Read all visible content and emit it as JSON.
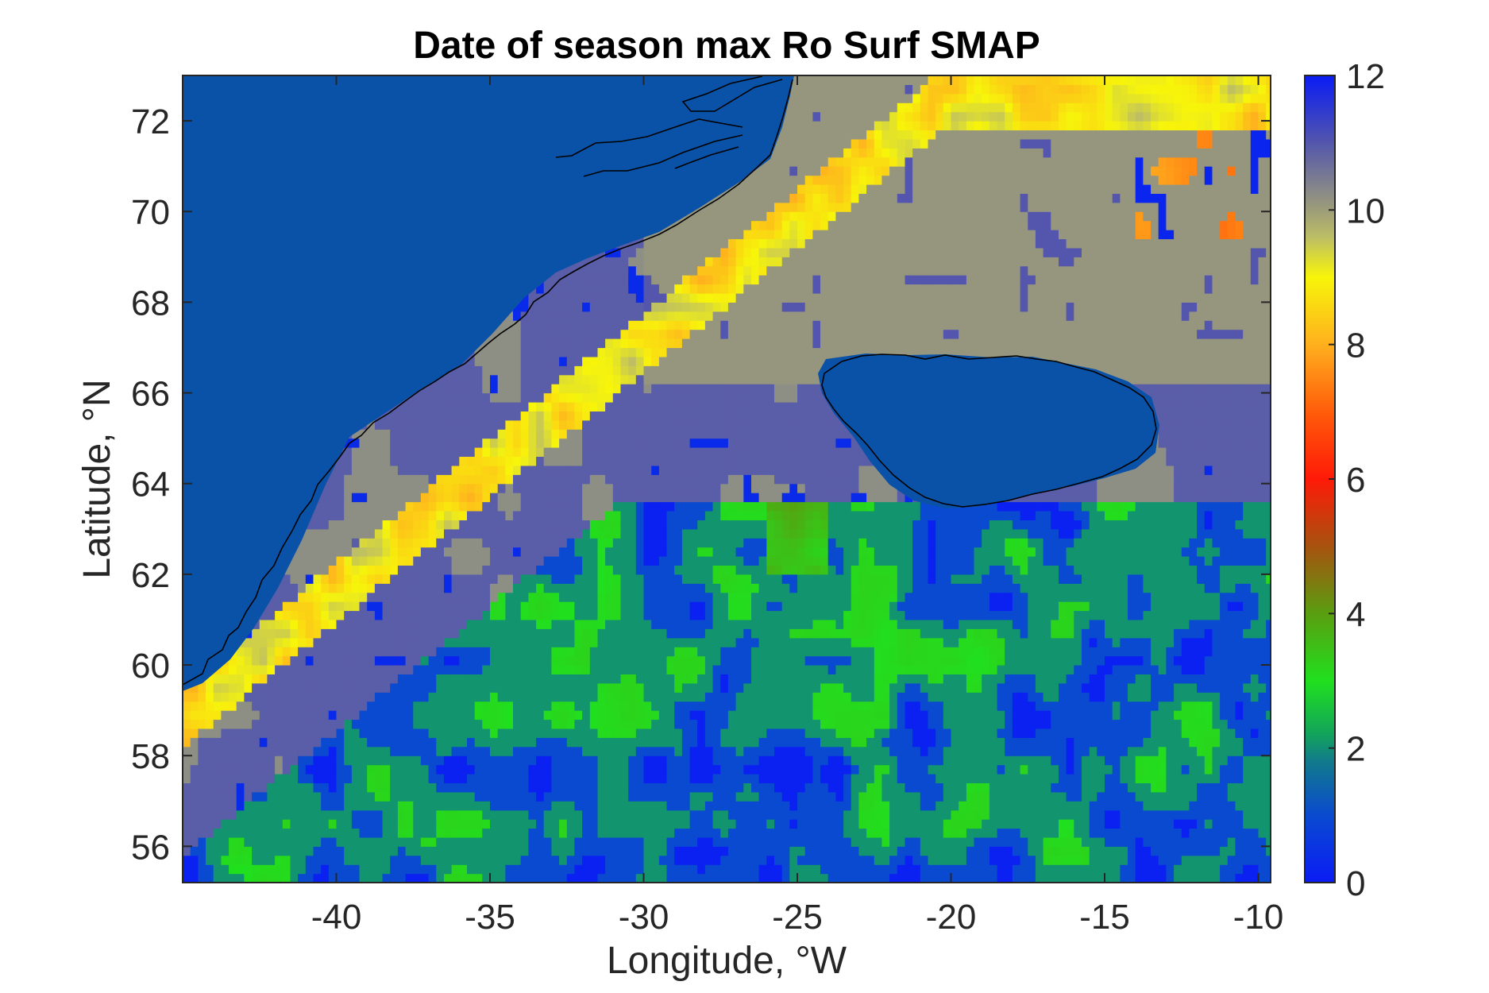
{
  "chart_data": {
    "type": "heatmap",
    "title": "Date of season max Ro Surf SMAP",
    "xlabel": "Longitude, °W",
    "ylabel": "Latitude, °N",
    "xlim": [
      -45,
      -9.6
    ],
    "ylim": [
      55.2,
      73
    ],
    "x_ticks": [
      -40,
      -35,
      -30,
      -25,
      -20,
      -15,
      -10
    ],
    "x_tick_labels": [
      "-40",
      "-35",
      "-30",
      "-25",
      "-20",
      "-15",
      "-10"
    ],
    "y_ticks": [
      56,
      58,
      60,
      62,
      64,
      66,
      68,
      70,
      72
    ],
    "y_tick_labels": [
      "56",
      "58",
      "60",
      "62",
      "64",
      "66",
      "68",
      "70",
      "72"
    ],
    "colorbar": {
      "range": [
        0,
        12
      ],
      "ticks": [
        0,
        2,
        4,
        6,
        8,
        10,
        12
      ],
      "tick_labels": [
        "0",
        "2",
        "4",
        "6",
        "8",
        "10",
        "12"
      ],
      "colormap_stops": [
        {
          "value": 0,
          "color": "#0a1cf5"
        },
        {
          "value": 1,
          "color": "#0a4ad0"
        },
        {
          "value": 1.8,
          "color": "#117a8c"
        },
        {
          "value": 2.2,
          "color": "#12a35c"
        },
        {
          "value": 3,
          "color": "#20e01e"
        },
        {
          "value": 4,
          "color": "#5a9e10"
        },
        {
          "value": 5,
          "color": "#a7520f"
        },
        {
          "value": 6,
          "color": "#ff1a08"
        },
        {
          "value": 7,
          "color": "#ff5c0a"
        },
        {
          "value": 8,
          "color": "#ffb01e"
        },
        {
          "value": 9,
          "color": "#f7f50a"
        },
        {
          "value": 9.6,
          "color": "#bcbd66"
        },
        {
          "value": 10,
          "color": "#9d9d7a"
        },
        {
          "value": 11,
          "color": "#5356ac"
        },
        {
          "value": 12,
          "color": "#0a1cf5"
        }
      ]
    },
    "land_color": "#0a52a8",
    "regions_described": [
      {
        "area": "Greenland land mask (top-left)",
        "value": "land"
      },
      {
        "area": "Iceland land mask (center-right)",
        "value": "land"
      },
      {
        "area": "Greenland shelf coastal band",
        "value_range": [
          7,
          9.5
        ]
      },
      {
        "area": "Denmark Strait / Iceland Sea north of 66N",
        "value_range": [
          10,
          10.5
        ]
      },
      {
        "area": "Irminger Basin 63-66N",
        "value_range": [
          10.5,
          11
        ]
      },
      {
        "area": "Southern basin 55-63N",
        "value_range": [
          0,
          3.5
        ]
      }
    ]
  }
}
